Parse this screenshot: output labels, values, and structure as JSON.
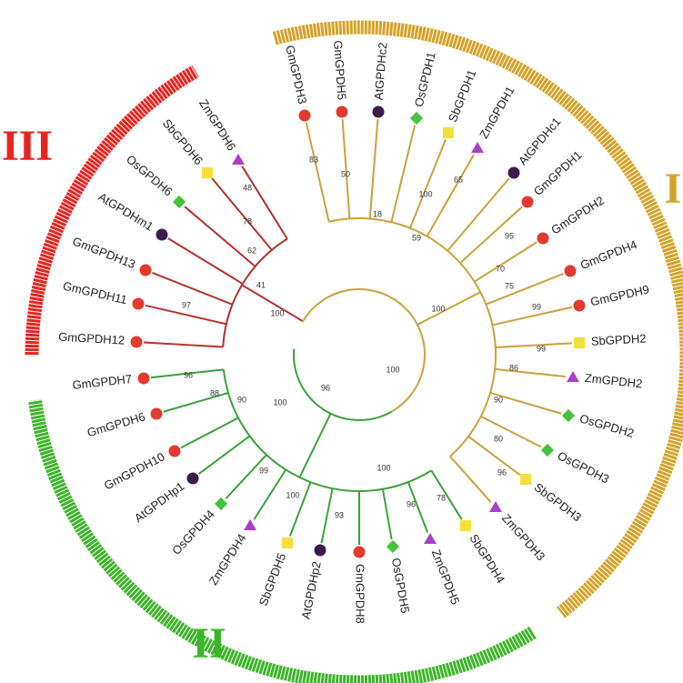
{
  "clades": [
    {
      "name": "III",
      "color": "#e8231f",
      "branch_color": "#b5322c",
      "leaves": [
        "ZmGPDH6",
        "SbGPDH6",
        "OsGPDH6",
        "AtGPDHm1",
        "GmGPDH13",
        "GmGPDH11",
        "GmGPDH12"
      ],
      "bootstrap": [
        48,
        78,
        62,
        41,
        97,
        100
      ]
    },
    {
      "name": "I",
      "color": "#d4a32a",
      "branch_color": "#c9a23a",
      "leaves": [
        "GmGPDH3",
        "GmGPDH5",
        "AtGPDHc2",
        "OsGPDH1",
        "SbGPDH1",
        "ZmGPDH1",
        "AtGPDHc1",
        "GmGPDH1",
        "GmGPDH2",
        "GmGPDH4",
        "GmGPDH9",
        "SbGPDH2",
        "ZmGPDH2",
        "OsGPDH2",
        "OsGPDH3",
        "SbGPDH3",
        "ZmGPDH3"
      ],
      "bootstrap": [
        83,
        50,
        18,
        100,
        65,
        59,
        95,
        70,
        75,
        99,
        100,
        99,
        86,
        90,
        80,
        96
      ]
    },
    {
      "name": "II",
      "color": "#3db52a",
      "branch_color": "#3aa13a",
      "leaves": [
        "GmGPDH7",
        "GmGPDH6",
        "GmGPDH10",
        "AtGPDHp1",
        "OsGPDH4",
        "ZmGPDH4",
        "SbGPDH5",
        "AtGPDHp2",
        "GmGPDH8",
        "OsGPDH5",
        "ZmGPDH5",
        "SbGPDH4"
      ],
      "bootstrap": [
        96,
        88,
        90,
        100,
        96,
        100,
        99,
        100,
        100,
        93,
        96,
        78
      ]
    }
  ]
}
